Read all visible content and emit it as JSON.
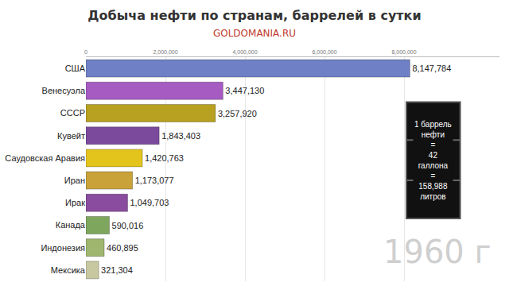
{
  "chart_data": {
    "type": "bar",
    "orientation": "horizontal",
    "title": "Добыча нефти по странам, баррелей в сутки",
    "subtitle": "GOLDOMANIA.RU",
    "categories": [
      "США",
      "Венесуэла",
      "СССР",
      "Кувейт",
      "Саудовская Аравия",
      "Иран",
      "Ирак",
      "Канада",
      "Индонезия",
      "Мексика"
    ],
    "values": [
      8147784,
      3447130,
      3257920,
      1843403,
      1420763,
      1173077,
      1049703,
      590016,
      460895,
      321304
    ],
    "value_labels": [
      "8,147,784",
      "3,447,130",
      "3,257,920",
      "1,843,403",
      "1,420,763",
      "1,173,077",
      "1,049,703",
      "590,016",
      "460,895",
      "321,304"
    ],
    "colors": [
      "#6f80c6",
      "#a55bc2",
      "#b8a020",
      "#7b4a9c",
      "#e3c41c",
      "#c9a23a",
      "#8a4c9e",
      "#7ea65c",
      "#9fb66e",
      "#c8c8a0"
    ],
    "xlim": [
      0,
      10400000
    ],
    "xticks": [
      0,
      {
        "value": 2000000,
        "label": "2,000,000"
      },
      {
        "value": 4000000,
        "label": "4,000,000"
      },
      {
        "value": 6000000,
        "label": "6,000,000"
      },
      {
        "value": 8000000,
        "label": "8,000,000"
      }
    ],
    "grid": true,
    "data_labels": true,
    "annotations": [
      "1960 г",
      [
        "1 баррель",
        "нефти",
        "=",
        "42",
        "галлона",
        "=",
        "158,988",
        "литров"
      ]
    ]
  }
}
